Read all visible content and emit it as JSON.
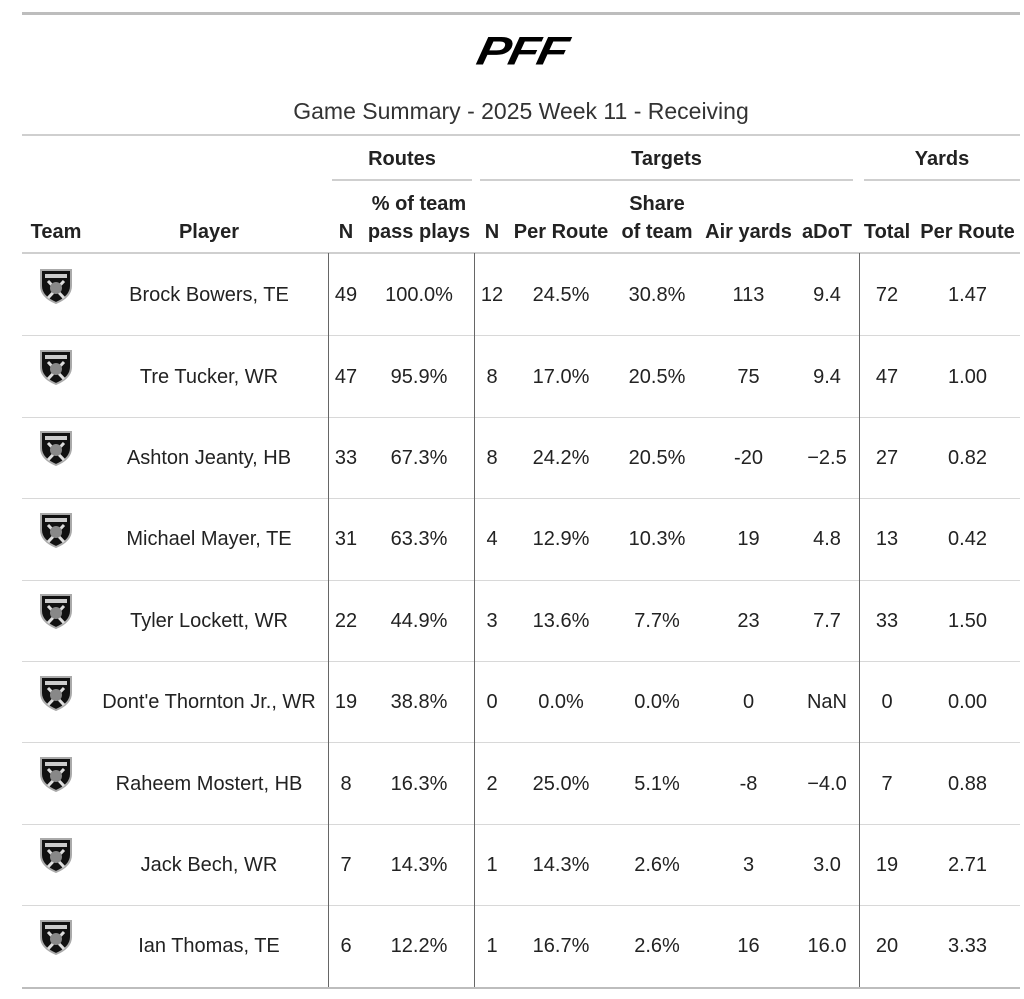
{
  "header": {
    "logo": "PFF",
    "title": "Game Summary - 2025 Week 11 - Receiving"
  },
  "table": {
    "groups": [
      "Routes",
      "Targets",
      "Yards"
    ],
    "columns": [
      "Team",
      "Player",
      "N",
      "% of team\npass plays",
      "N",
      "Per Route",
      "Share\nof team",
      "Air yards",
      "aDoT",
      "Total",
      "Per Route"
    ],
    "rows": [
      [
        "Brock Bowers, TE",
        "49",
        "100.0%",
        "12",
        "24.5%",
        "30.8%",
        "113",
        "9.4",
        "72",
        "1.47"
      ],
      [
        "Tre Tucker, WR",
        "47",
        "95.9%",
        "8",
        "17.0%",
        "20.5%",
        "75",
        "9.4",
        "47",
        "1.00"
      ],
      [
        "Ashton Jeanty, HB",
        "33",
        "67.3%",
        "8",
        "24.2%",
        "20.5%",
        "-20",
        "−2.5",
        "27",
        "0.82"
      ],
      [
        "Michael Mayer, TE",
        "31",
        "63.3%",
        "4",
        "12.9%",
        "10.3%",
        "19",
        "4.8",
        "13",
        "0.42"
      ],
      [
        "Tyler Lockett, WR",
        "22",
        "44.9%",
        "3",
        "13.6%",
        "7.7%",
        "23",
        "7.7",
        "33",
        "1.50"
      ],
      [
        "Dont'e Thornton Jr., WR",
        "19",
        "38.8%",
        "0",
        "0.0%",
        "0.0%",
        "0",
        "NaN",
        "0",
        "0.00"
      ],
      [
        "Raheem Mostert, HB",
        "8",
        "16.3%",
        "2",
        "25.0%",
        "5.1%",
        "-8",
        "−4.0",
        "7",
        "0.88"
      ],
      [
        "Jack Bech, WR",
        "7",
        "14.3%",
        "1",
        "14.3%",
        "2.6%",
        "3",
        "3.0",
        "19",
        "2.71"
      ],
      [
        "Ian Thomas, TE",
        "6",
        "12.2%",
        "1",
        "16.7%",
        "2.6%",
        "16",
        "16.0",
        "20",
        "3.33"
      ]
    ]
  }
}
